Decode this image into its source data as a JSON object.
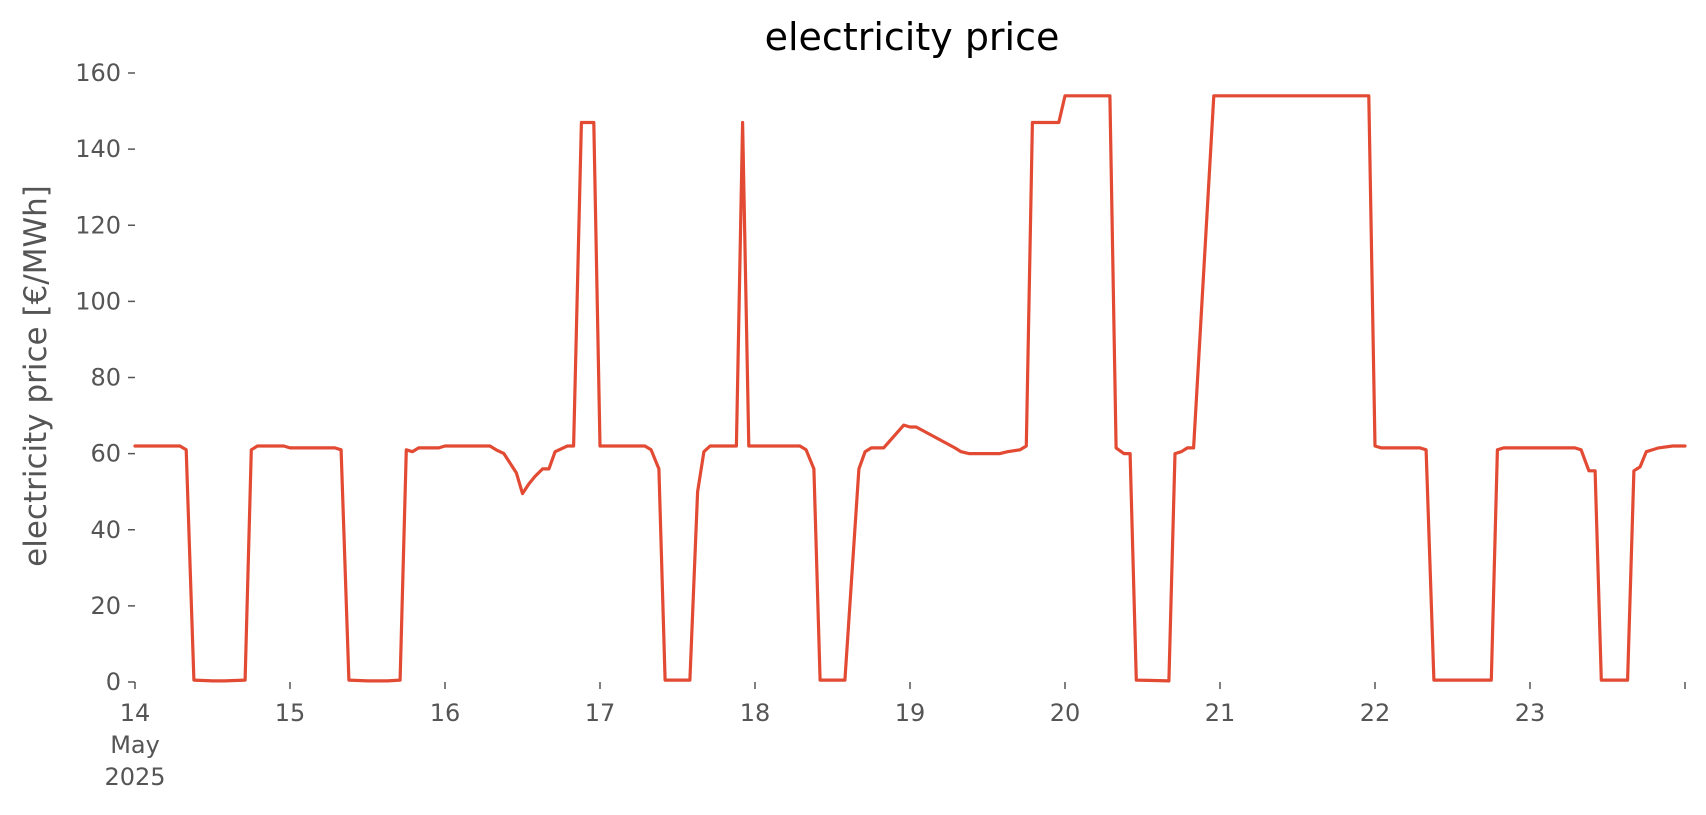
{
  "chart_data": {
    "type": "line",
    "title": "electricity price",
    "xlabel": "",
    "ylabel": "electricity price [€/MWh]",
    "x_unit": "day",
    "xlim": [
      14,
      24
    ],
    "ylim": [
      0,
      160
    ],
    "yticks": [
      0,
      20,
      40,
      60,
      80,
      100,
      120,
      140,
      160
    ],
    "xticks": [
      {
        "value": 14,
        "label": [
          "14",
          "May",
          "2025"
        ]
      },
      {
        "value": 15,
        "label": [
          "15"
        ]
      },
      {
        "value": 16,
        "label": [
          "16"
        ]
      },
      {
        "value": 17,
        "label": [
          "17"
        ]
      },
      {
        "value": 18,
        "label": [
          "18"
        ]
      },
      {
        "value": 19,
        "label": [
          "19"
        ]
      },
      {
        "value": 20,
        "label": [
          "20"
        ]
      },
      {
        "value": 21,
        "label": [
          "21"
        ]
      },
      {
        "value": 22,
        "label": [
          "22"
        ]
      },
      {
        "value": 23,
        "label": [
          "23"
        ]
      },
      {
        "value": 24,
        "label": [
          ""
        ]
      }
    ],
    "grid": false,
    "series": [
      {
        "color": "#E24A33",
        "x": [
          14.0,
          14.29,
          14.33,
          14.38,
          14.5,
          14.58,
          14.71,
          14.75,
          14.79,
          14.83,
          14.96,
          15.0,
          15.29,
          15.33,
          15.38,
          15.5,
          15.63,
          15.71,
          15.75,
          15.79,
          15.83,
          15.96,
          16.0,
          16.29,
          16.33,
          16.38,
          16.46,
          16.5,
          16.54,
          16.58,
          16.63,
          16.67,
          16.71,
          16.79,
          16.83,
          16.88,
          16.96,
          17.0,
          17.29,
          17.33,
          17.38,
          17.42,
          17.58,
          17.63,
          17.67,
          17.71,
          17.79,
          17.88,
          17.92,
          17.96,
          18.0,
          18.29,
          18.33,
          18.38,
          18.42,
          18.58,
          18.67,
          18.71,
          18.75,
          18.83,
          18.96,
          19.0,
          19.04,
          19.29,
          19.33,
          19.38,
          19.42,
          19.58,
          19.63,
          19.71,
          19.75,
          19.79,
          19.96,
          20.0,
          20.04,
          20.29,
          20.33,
          20.38,
          20.42,
          20.46,
          20.67,
          20.71,
          20.75,
          20.79,
          20.83,
          20.96,
          21.0,
          21.04,
          21.96,
          22.0,
          22.04,
          22.29,
          22.33,
          22.38,
          22.75,
          22.79,
          22.83,
          23.29,
          23.33,
          23.38,
          23.42,
          23.46,
          23.63,
          23.67,
          23.71,
          23.75,
          23.83,
          23.92,
          24.0
        ],
        "y": [
          62,
          62,
          61,
          0.5,
          0.3,
          0.3,
          0.5,
          61,
          62,
          62,
          62,
          61.5,
          61.5,
          61,
          0.5,
          0.3,
          0.3,
          0.5,
          61,
          60.5,
          61.5,
          61.5,
          62,
          62,
          61,
          60,
          55,
          49.5,
          52,
          54,
          56,
          56,
          60.5,
          62,
          62,
          147,
          147,
          62,
          62,
          61,
          56,
          0.5,
          0.5,
          50,
          60.5,
          62,
          62,
          62,
          147,
          62,
          62,
          62,
          61,
          56,
          0.5,
          0.5,
          56,
          60.5,
          61.5,
          61.5,
          67.5,
          67,
          67,
          61.5,
          60.5,
          60,
          60,
          60,
          60.5,
          61,
          62,
          147,
          147,
          154,
          154,
          154,
          61.5,
          60,
          60,
          0.5,
          0.3,
          60,
          60.5,
          61.5,
          61.5,
          154,
          154,
          154,
          154,
          62,
          61.5,
          61.5,
          61,
          0.5,
          0.5,
          61,
          61.5,
          61.5,
          61,
          55.5,
          55.5,
          0.5,
          0.5,
          55.5,
          56.5,
          60.5,
          61.5,
          62,
          62
        ]
      }
    ]
  }
}
